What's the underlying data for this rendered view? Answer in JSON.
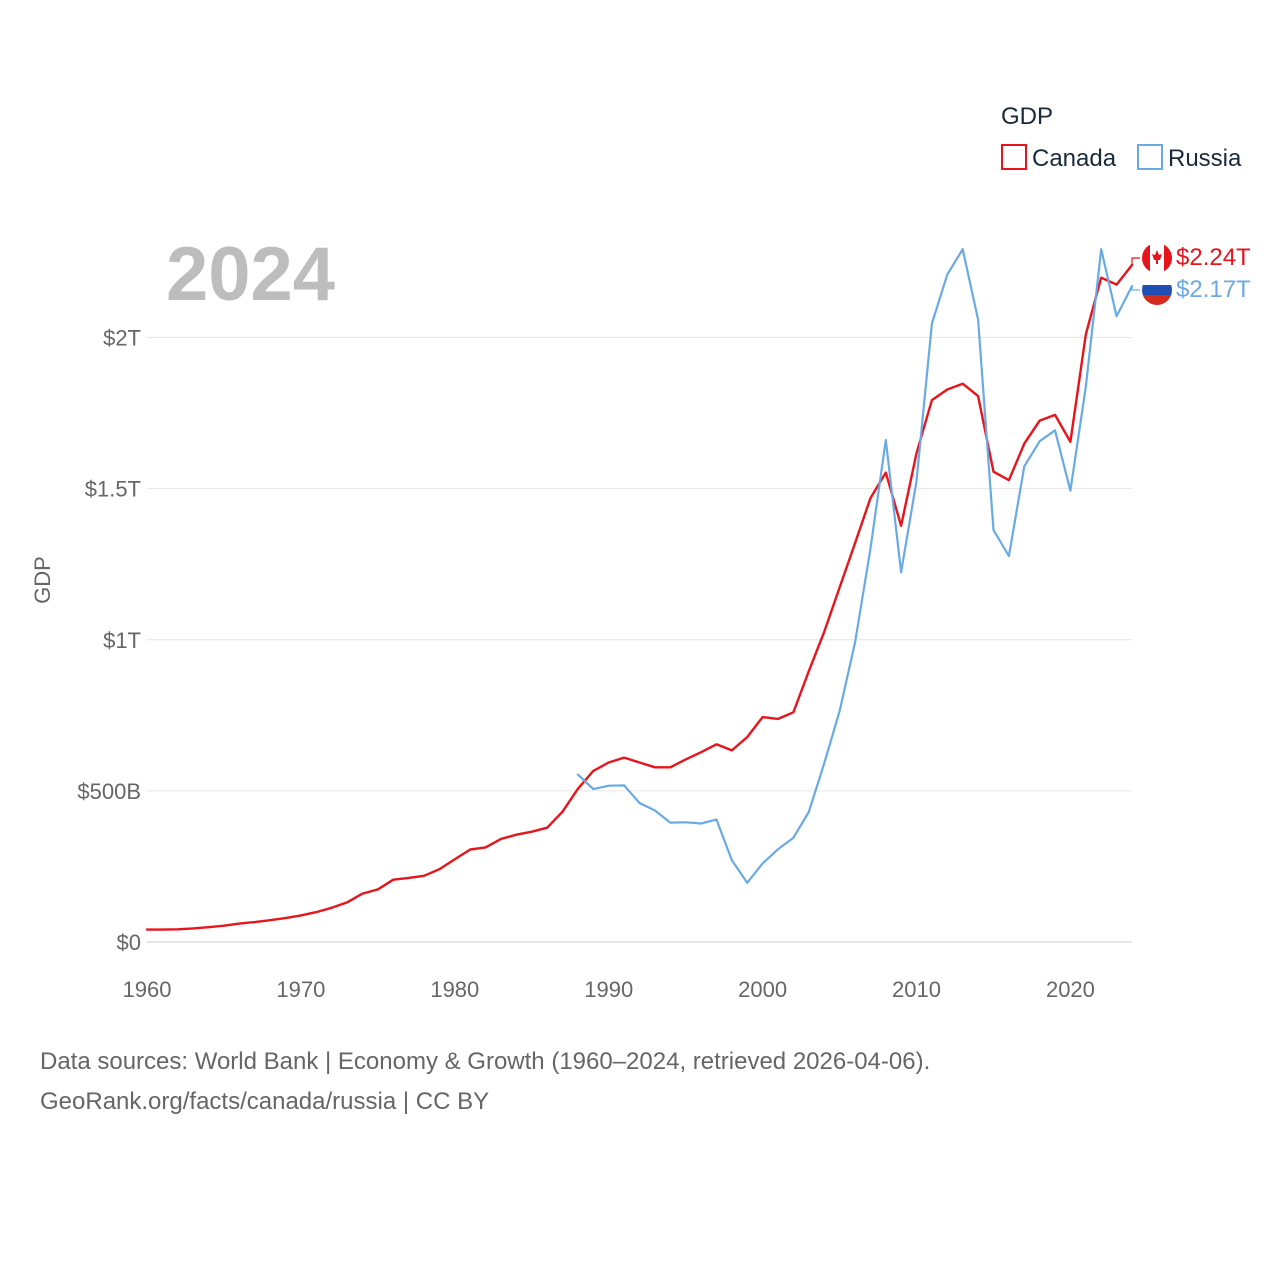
{
  "legend": {
    "title": "GDP"
  },
  "year_label": "2024",
  "footer": {
    "line1": "Data sources: World Bank | Economy & Growth (1960–2024, retrieved 2026-04-06).",
    "line2": "GeoRank.org/facts/canada/russia | CC BY"
  },
  "chart_data": {
    "type": "line",
    "title": "GDP",
    "xlabel": "",
    "ylabel": "GDP",
    "xlim": [
      1960,
      2024
    ],
    "ylim": [
      0,
      2.3
    ],
    "x_ticks": [
      1960,
      1970,
      1980,
      1990,
      2000,
      2010,
      2020
    ],
    "y_ticks": [
      {
        "value": 0,
        "label": "$0"
      },
      {
        "value": 0.5,
        "label": "$500B"
      },
      {
        "value": 1.0,
        "label": "$1T"
      },
      {
        "value": 1.5,
        "label": "$1.5T"
      },
      {
        "value": 2.0,
        "label": "$2T"
      }
    ],
    "units": "trillions of US dollars",
    "grid": true,
    "legend_position": "top-right",
    "series": [
      {
        "name": "Canada",
        "color": "#e8141c",
        "end_label": "$2.24T",
        "icon": "canada-flag-icon",
        "x": [
          1960,
          1961,
          1962,
          1963,
          1964,
          1965,
          1966,
          1967,
          1968,
          1969,
          1970,
          1971,
          1972,
          1973,
          1974,
          1975,
          1976,
          1977,
          1978,
          1979,
          1980,
          1981,
          1982,
          1983,
          1984,
          1985,
          1986,
          1987,
          1988,
          1989,
          1990,
          1991,
          1992,
          1993,
          1994,
          1995,
          1996,
          1997,
          1998,
          1999,
          2000,
          2001,
          2002,
          2003,
          2004,
          2005,
          2006,
          2007,
          2008,
          2009,
          2010,
          2011,
          2012,
          2013,
          2014,
          2015,
          2016,
          2017,
          2018,
          2019,
          2020,
          2021,
          2022,
          2023,
          2024
        ],
        "values": [
          0.041,
          0.041,
          0.042,
          0.045,
          0.049,
          0.054,
          0.061,
          0.066,
          0.072,
          0.079,
          0.088,
          0.099,
          0.113,
          0.131,
          0.16,
          0.174,
          0.206,
          0.212,
          0.219,
          0.241,
          0.274,
          0.306,
          0.313,
          0.341,
          0.355,
          0.365,
          0.378,
          0.431,
          0.507,
          0.566,
          0.594,
          0.61,
          0.594,
          0.578,
          0.578,
          0.604,
          0.628,
          0.654,
          0.634,
          0.678,
          0.744,
          0.738,
          0.76,
          0.896,
          1.026,
          1.173,
          1.319,
          1.468,
          1.553,
          1.377,
          1.617,
          1.793,
          1.828,
          1.847,
          1.806,
          1.556,
          1.528,
          1.649,
          1.725,
          1.744,
          1.655,
          2.01,
          2.198,
          2.175,
          2.24
        ]
      },
      {
        "name": "Russia",
        "color": "#6aaae4",
        "end_label": "$2.17T",
        "icon": "russia-flag-icon",
        "x": [
          1988,
          1989,
          1990,
          1991,
          1992,
          1993,
          1994,
          1995,
          1996,
          1997,
          1998,
          1999,
          2000,
          2001,
          2002,
          2003,
          2004,
          2005,
          2006,
          2007,
          2008,
          2009,
          2010,
          2011,
          2012,
          2013,
          2014,
          2015,
          2016,
          2017,
          2018,
          2019,
          2020,
          2021,
          2022,
          2023,
          2024
        ],
        "values": [
          0.554,
          0.506,
          0.517,
          0.518,
          0.46,
          0.435,
          0.395,
          0.396,
          0.392,
          0.405,
          0.271,
          0.196,
          0.26,
          0.307,
          0.345,
          0.43,
          0.591,
          0.764,
          0.99,
          1.3,
          1.661,
          1.223,
          1.525,
          2.046,
          2.208,
          2.292,
          2.059,
          1.363,
          1.277,
          1.574,
          1.657,
          1.693,
          1.493,
          1.837,
          2.292,
          2.07,
          2.17
        ]
      }
    ]
  }
}
